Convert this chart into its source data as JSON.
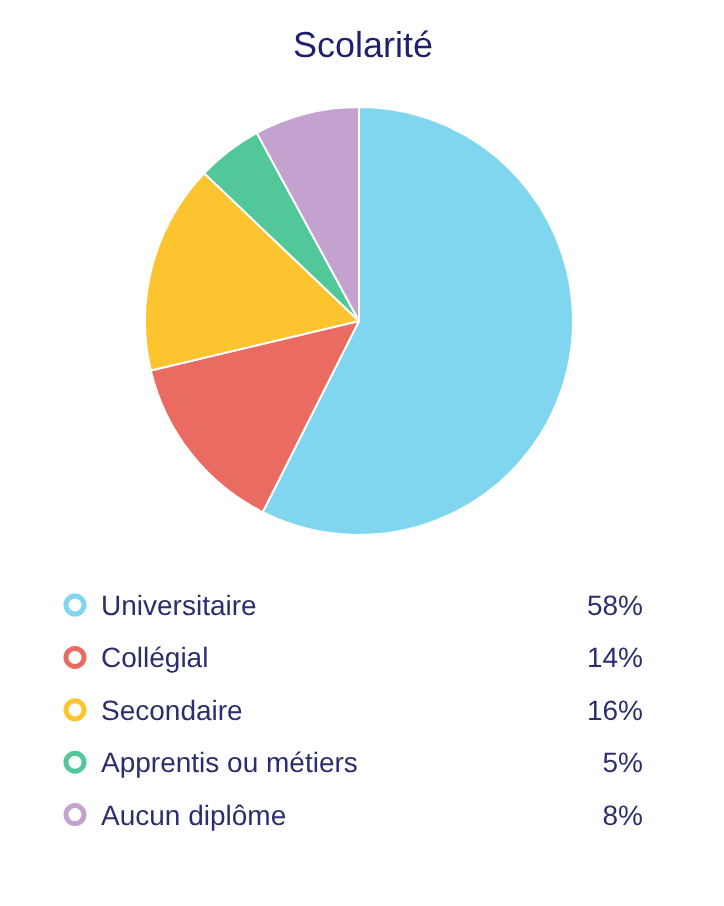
{
  "chart_data": {
    "type": "pie",
    "title": "Scolarité",
    "categories": [
      "Universitaire",
      "Collégial",
      "Secondaire",
      "Apprentis ou métiers",
      "Aucun diplôme"
    ],
    "values": [
      58,
      14,
      16,
      5,
      8
    ],
    "value_labels": [
      "58%",
      "14%",
      "16%",
      "5%",
      "8%"
    ],
    "colors": [
      "#7fd6ee",
      "#ea6b61",
      "#fcc42e",
      "#52c79a",
      "#c3a2cf"
    ],
    "legend": "bottom"
  }
}
